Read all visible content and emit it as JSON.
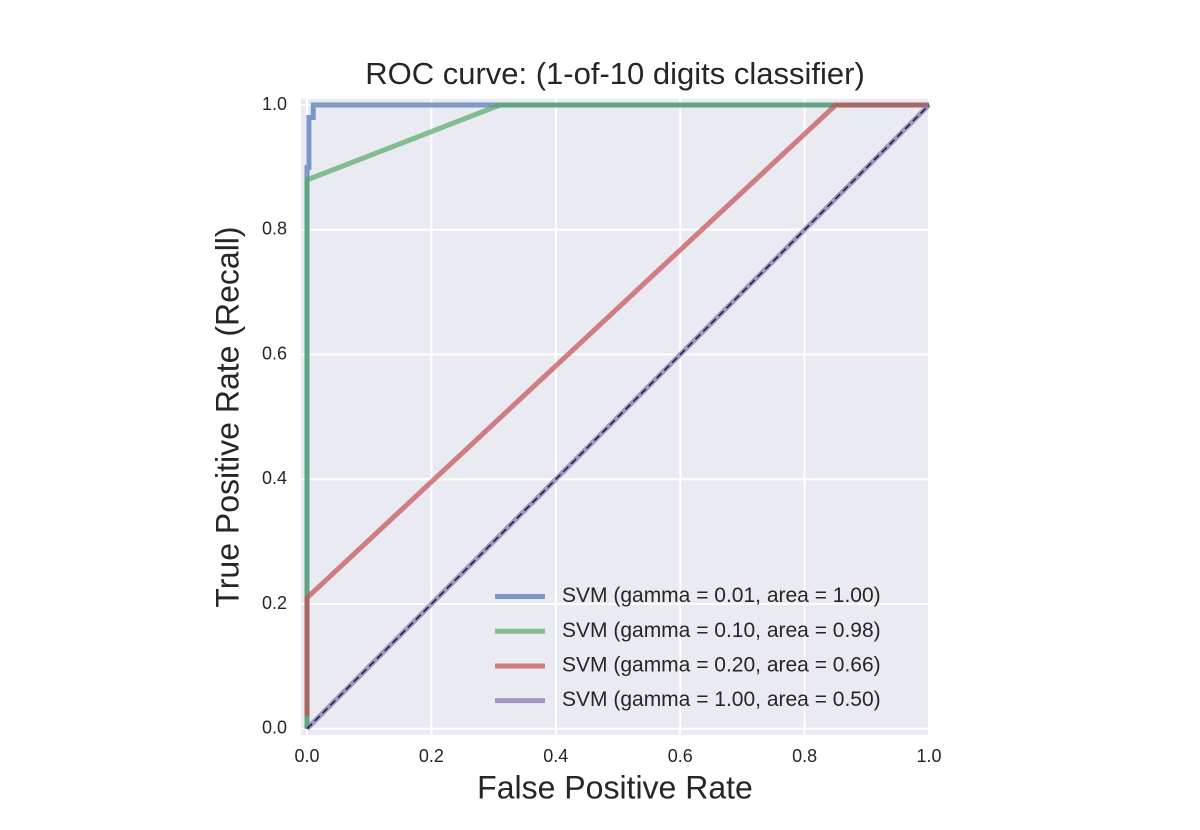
{
  "chart_data": {
    "type": "line",
    "title": "ROC curve: (1-of-10 digits classifier)",
    "x_label": "False Positive Rate",
    "y_label": "True Positive Rate (Recall)",
    "xlim": [
      -0.01,
      1.0
    ],
    "ylim": [
      -0.01,
      1.01
    ],
    "xticks": [
      {
        "value": 0,
        "label": "0.0"
      },
      {
        "value": 0.2,
        "label": "0.2"
      },
      {
        "value": 0.4,
        "label": "0.4"
      },
      {
        "value": 0.6,
        "label": "0.6"
      },
      {
        "value": 0.8,
        "label": "0.8"
      },
      {
        "value": 1,
        "label": "1.0"
      }
    ],
    "yticks": [
      {
        "value": 0,
        "label": "0.0"
      },
      {
        "value": 0.2,
        "label": "0.2"
      },
      {
        "value": 0.4,
        "label": "0.4"
      },
      {
        "value": 0.6,
        "label": "0.6"
      },
      {
        "value": 0.8,
        "label": "0.8"
      },
      {
        "value": 1,
        "label": "1.0"
      }
    ],
    "grid": true,
    "legend": "lower right",
    "alpha": 0.7,
    "series": [
      {
        "name": "SVM (gamma = 0.01, area = 1.00)",
        "color": "#4c72b0",
        "x": [
          0,
          0,
          0.003,
          0.003,
          0.01,
          0.01,
          1
        ],
        "values": [
          0,
          0.9,
          0.9,
          0.98,
          0.98,
          1,
          1
        ]
      },
      {
        "name": "SVM (gamma = 0.10, area = 0.98)",
        "color": "#55a868",
        "x": [
          0,
          0,
          0.31,
          1
        ],
        "values": [
          0,
          0.88,
          1,
          1
        ]
      },
      {
        "name": "SVM (gamma = 0.20, area = 0.66)",
        "color": "#c44e52",
        "x": [
          0,
          0,
          0.85,
          1
        ],
        "values": [
          0.02,
          0.21,
          1,
          1
        ]
      },
      {
        "name": "SVM (gamma = 1.00, area = 0.50)",
        "color": "#8172b2",
        "x": [
          0,
          1
        ],
        "values": [
          0,
          1
        ]
      }
    ],
    "reference_line": {
      "color": "#1c1c3a",
      "dashed": true,
      "x": [
        0,
        1
      ],
      "values": [
        0,
        1
      ]
    }
  }
}
